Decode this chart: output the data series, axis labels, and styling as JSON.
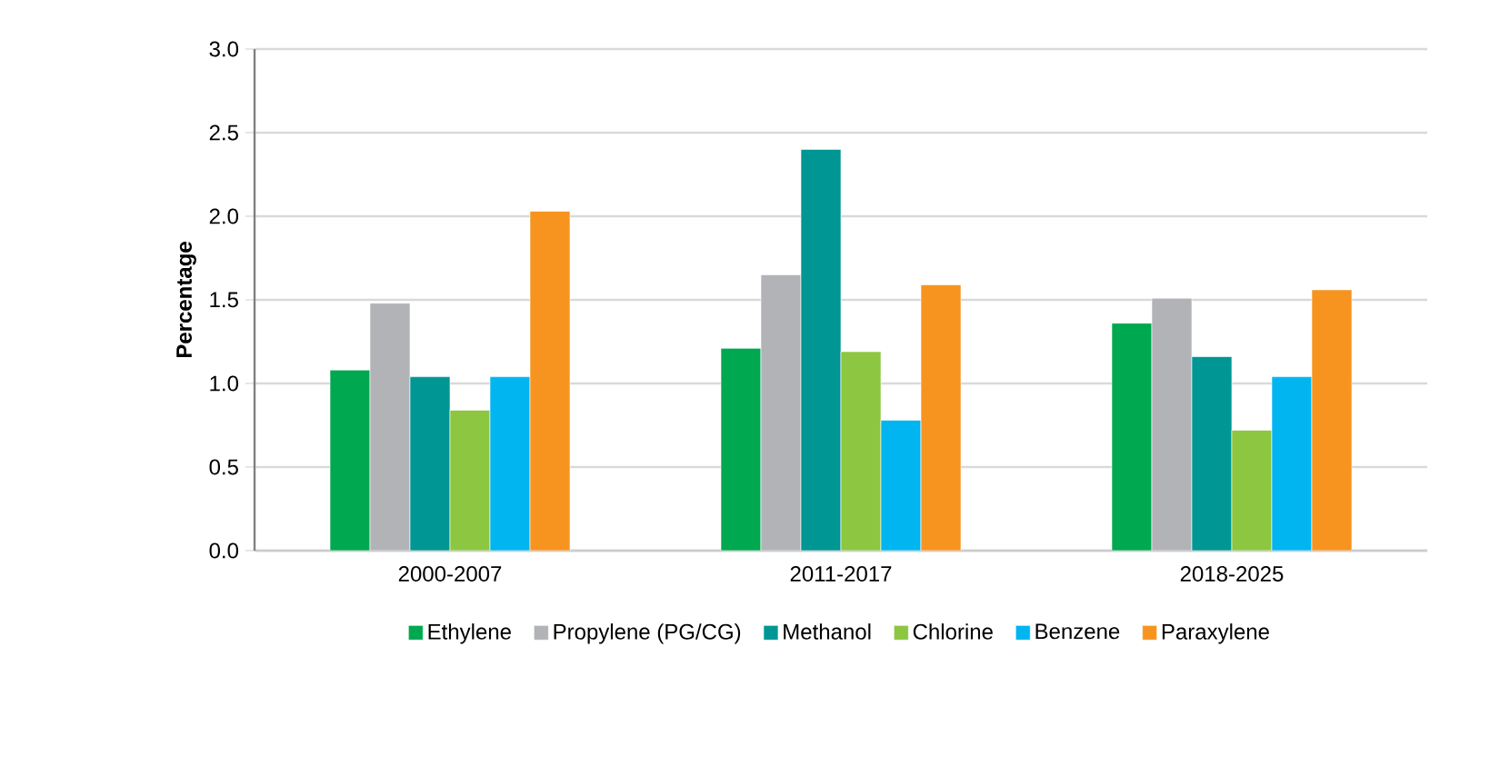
{
  "chart_data": {
    "type": "bar",
    "ylabel": "Percentage",
    "categories": [
      "2000-2007",
      "2011-2017",
      "2018-2025"
    ],
    "series": [
      {
        "name": "Ethylene",
        "color": "#00a84f",
        "values": [
          1.08,
          1.21,
          1.36
        ]
      },
      {
        "name": "Propylene (PG/CG)",
        "color": "#b2b3b6",
        "values": [
          1.48,
          1.65,
          1.51
        ]
      },
      {
        "name": "Methanol",
        "color": "#009694",
        "values": [
          1.04,
          2.4,
          1.16
        ]
      },
      {
        "name": "Chlorine",
        "color": "#8dc641",
        "values": [
          0.84,
          1.19,
          0.72
        ]
      },
      {
        "name": "Benzene",
        "color": "#00b5f0",
        "values": [
          1.04,
          0.78,
          1.04
        ]
      },
      {
        "name": "Paraxylene",
        "color": "#f7941f",
        "values": [
          2.03,
          1.59,
          1.56
        ]
      }
    ],
    "ylim": [
      0,
      3
    ],
    "yticks": [
      {
        "value": 0,
        "label": "0.0"
      },
      {
        "value": 0.5,
        "label": "0.5"
      },
      {
        "value": 1,
        "label": "1.0"
      },
      {
        "value": 1.5,
        "label": "1.5"
      },
      {
        "value": 2,
        "label": "2.0"
      },
      {
        "value": 2.5,
        "label": "2.5"
      },
      {
        "value": 3,
        "label": "3.0"
      }
    ],
    "grid": "y",
    "legend": "bottom"
  }
}
